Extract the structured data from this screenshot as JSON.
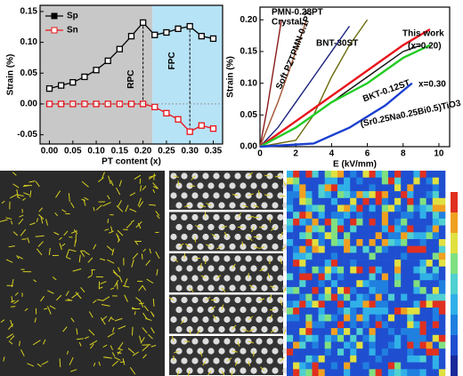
{
  "chart_data": [
    {
      "type": "line",
      "y_label": "Strain (%)",
      "x_label": "PT content (x)",
      "xlim": [
        -0.02,
        0.37
      ],
      "xticks": [
        {
          "value": 0,
          "label": "0.00"
        },
        0.05,
        {
          "value": 0.1,
          "label": "0.10"
        },
        0.15,
        {
          "value": 0.2,
          "label": "0.20"
        },
        0.25,
        {
          "value": 0.3,
          "label": "0.30"
        },
        0.35
      ],
      "ylim": [
        -0.065,
        0.16
      ],
      "yticks": [
        -0.05,
        {
          "value": 0,
          "label": "0.00"
        },
        0.05,
        {
          "value": 0.1,
          "label": "0.10"
        },
        0.15
      ],
      "regions": [
        {
          "label": "RPC",
          "from": -0.02,
          "to": 0.22,
          "color": "#c8c8c8"
        },
        {
          "label": "FPC",
          "from": 0.22,
          "to": 0.37,
          "color": "#b7e3f7"
        }
      ],
      "x": [
        0,
        0.025,
        0.05,
        0.075,
        0.1,
        0.125,
        0.15,
        0.175,
        0.2,
        0.225,
        0.25,
        0.275,
        0.3,
        0.325,
        0.35
      ],
      "series": [
        {
          "name": "Sp",
          "color": "#000000",
          "values": [
            0.025,
            0.03,
            0.035,
            0.044,
            0.055,
            0.07,
            0.089,
            0.11,
            0.132,
            0.112,
            0.116,
            0.122,
            0.126,
            0.11,
            0.106
          ]
        },
        {
          "name": "Sn",
          "color": "#e8141b",
          "values": [
            0,
            0,
            0,
            0,
            0,
            0,
            0,
            0,
            0,
            -0.005,
            -0.015,
            -0.025,
            -0.045,
            -0.035,
            -0.04
          ]
        }
      ]
    },
    {
      "type": "multi-line",
      "y_label": "Strain (%)",
      "x_label": "E (kV/mm)",
      "xlim": [
        0,
        10.6
      ],
      "xticks": [
        0,
        2,
        4,
        6,
        8,
        10
      ],
      "ylim": [
        0,
        0.22
      ],
      "yticks": [
        {
          "value": 0,
          "label": "0.00"
        },
        0.05,
        {
          "value": 0.1,
          "label": "0.10"
        },
        0.15,
        {
          "value": 0.2,
          "label": "0.20"
        }
      ],
      "series": [
        {
          "name": "PMN-0.28PT",
          "color": "#8b1a1a",
          "x": [
            0,
            0.4,
            0.8,
            1.2
          ],
          "values": [
            0,
            0.06,
            0.13,
            0.2
          ]
        },
        {
          "name": "PMN-0.1PT",
          "color": "#a0522d",
          "x": [
            0,
            1,
            2,
            2.6
          ],
          "values": [
            0,
            0.07,
            0.15,
            0.2
          ]
        },
        {
          "name": "BNT-30ST",
          "color": "#6b6b10",
          "x": [
            0,
            2,
            3,
            4,
            5,
            6
          ],
          "values": [
            0,
            0.01,
            0.05,
            0.11,
            0.16,
            0.2
          ]
        },
        {
          "name": "Soft PZT",
          "color": "#1a237e",
          "x": [
            0,
            1,
            2,
            3,
            4,
            5
          ],
          "values": [
            0,
            0.03,
            0.07,
            0.11,
            0.15,
            0.19
          ]
        },
        {
          "name": "BKT-0.12ST",
          "color": "#111111",
          "x": [
            0,
            2,
            4,
            6,
            8,
            9
          ],
          "values": [
            0,
            0.03,
            0.07,
            0.11,
            0.15,
            0.16
          ]
        },
        {
          "name": "This work",
          "color": "#e8141b",
          "x": [
            0,
            2,
            4,
            6,
            8,
            9.5
          ],
          "values": [
            0,
            0.04,
            0.08,
            0.12,
            0.16,
            0.185
          ]
        },
        {
          "name": "x=0.30",
          "color": "#22cc22",
          "x": [
            0,
            2,
            4,
            6,
            8,
            9.5
          ],
          "values": [
            0,
            0.03,
            0.07,
            0.1,
            0.14,
            0.16
          ]
        },
        {
          "name": "(Sr0.25Na0.25Bi0.5)TiO3",
          "color": "#1a3fd0",
          "x": [
            0,
            3,
            5,
            7,
            8.5
          ],
          "values": [
            0,
            0.005,
            0.03,
            0.065,
            0.1
          ]
        }
      ],
      "annotations": [
        "Crystal",
        "(x=0.20)"
      ]
    }
  ]
}
